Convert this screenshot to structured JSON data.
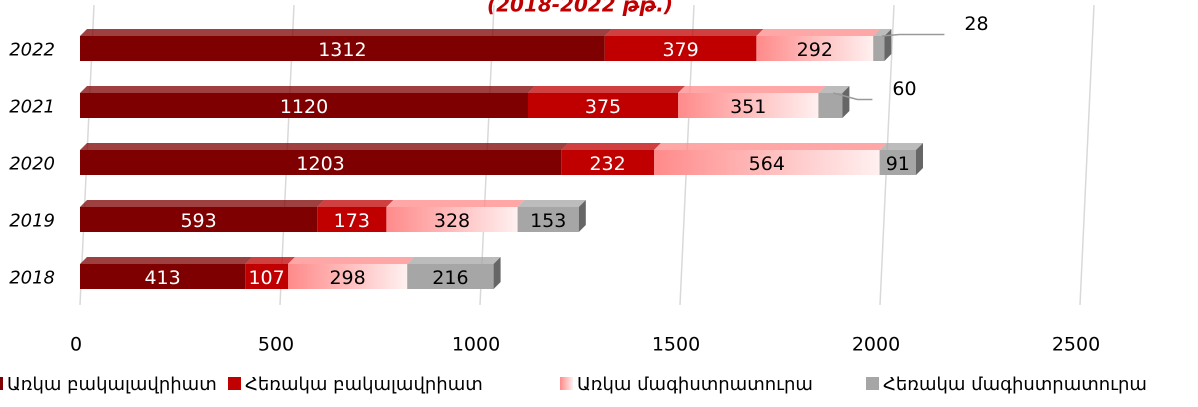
{
  "chart_data": {
    "type": "bar",
    "orientation": "horizontal",
    "stacked": true,
    "title": "(2018-2022 թթ.)",
    "categories": [
      "2018",
      "2019",
      "2020",
      "2021",
      "2022"
    ],
    "series": [
      {
        "name": "Առկա բակալավրիատ",
        "color": "#7f0000",
        "values": [
          413,
          593,
          1203,
          1120,
          1312
        ]
      },
      {
        "name": "Հեռակա բակալավրիատ",
        "color": "#c00000",
        "values": [
          107,
          173,
          232,
          375,
          379
        ]
      },
      {
        "name": "Առկա մագիստրատուրա",
        "color": "#ff8a8a",
        "values": [
          298,
          328,
          564,
          351,
          292
        ]
      },
      {
        "name": "Հեռակա մագիստրատուրա",
        "color": "#a6a6a6",
        "values": [
          216,
          153,
          91,
          60,
          28
        ]
      }
    ],
    "xlim": [
      0,
      2500
    ],
    "xticks": [
      0,
      500,
      1000,
      1500,
      2000,
      2500
    ],
    "grid": true,
    "legend": "bottom"
  }
}
